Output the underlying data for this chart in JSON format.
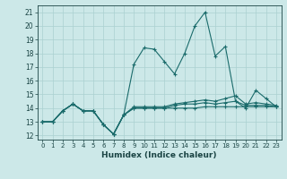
{
  "xlabel": "Humidex (Indice chaleur)",
  "x": [
    0,
    1,
    2,
    3,
    4,
    5,
    6,
    7,
    8,
    9,
    10,
    11,
    12,
    13,
    14,
    15,
    16,
    17,
    18,
    19,
    20,
    21,
    22,
    23
  ],
  "series1": [
    13,
    13,
    13.8,
    14.3,
    13.8,
    13.8,
    12.8,
    12.1,
    13.5,
    17.2,
    18.4,
    18.3,
    17.4,
    16.5,
    18.0,
    20.0,
    21.0,
    17.8,
    18.5,
    14.5,
    14.0,
    15.3,
    14.7,
    14.1
  ],
  "series2": [
    13,
    13,
    13.8,
    14.3,
    13.8,
    13.8,
    12.8,
    12.1,
    13.5,
    14.0,
    14.0,
    14.0,
    14.0,
    14.0,
    14.0,
    14.0,
    14.1,
    14.1,
    14.1,
    14.1,
    14.1,
    14.1,
    14.1,
    14.1
  ],
  "series3": [
    13,
    13,
    13.8,
    14.3,
    13.8,
    13.8,
    12.8,
    12.1,
    13.5,
    14.0,
    14.0,
    14.0,
    14.0,
    14.2,
    14.3,
    14.3,
    14.4,
    14.3,
    14.4,
    14.5,
    14.2,
    14.2,
    14.2,
    14.1
  ],
  "series4": [
    13,
    13,
    13.8,
    14.3,
    13.8,
    13.8,
    12.8,
    12.1,
    13.5,
    14.1,
    14.1,
    14.1,
    14.1,
    14.3,
    14.4,
    14.5,
    14.6,
    14.5,
    14.7,
    14.9,
    14.3,
    14.4,
    14.3,
    14.2
  ],
  "line_color": "#1a6b6b",
  "bg_color": "#cce8e8",
  "grid_color": "#aad0d0",
  "text_color": "#1a4444",
  "ylim": [
    11.7,
    21.5
  ],
  "yticks": [
    12,
    13,
    14,
    15,
    16,
    17,
    18,
    19,
    20,
    21
  ],
  "xticks": [
    0,
    1,
    2,
    3,
    4,
    5,
    6,
    7,
    8,
    9,
    10,
    11,
    12,
    13,
    14,
    15,
    16,
    17,
    18,
    19,
    20,
    21,
    22,
    23
  ]
}
